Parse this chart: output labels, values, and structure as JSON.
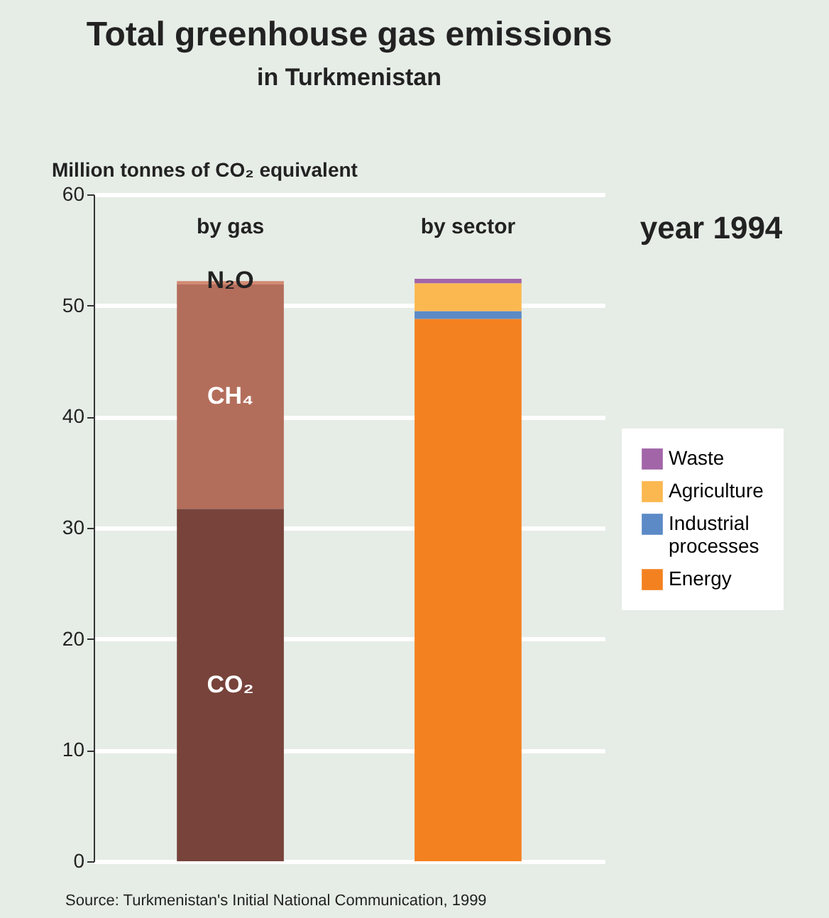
{
  "chart_data": {
    "type": "bar",
    "title": "Total greenhouse gas emissions",
    "subtitle": "in Turkmenistan",
    "ylabel": "Million tonnes of CO₂ equivalent",
    "categories": [
      "by gas",
      "by sector"
    ],
    "stacked": true,
    "series": [
      {
        "name": "CO₂",
        "color": "#77433b",
        "values": [
          31.7,
          null
        ]
      },
      {
        "name": "CH₄",
        "color": "#b36e5b",
        "values": [
          20.2,
          null
        ]
      },
      {
        "name": "N₂O",
        "color": "#d28a73",
        "values": [
          0.3,
          null
        ]
      },
      {
        "name": "Energy",
        "color": "#f48120",
        "values": [
          null,
          48.8
        ]
      },
      {
        "name": "Industrial processes",
        "color": "#5b8ac6",
        "values": [
          null,
          0.7
        ]
      },
      {
        "name": "Agriculture",
        "color": "#fbb850",
        "values": [
          null,
          2.5
        ]
      },
      {
        "name": "Waste",
        "color": "#a265a8",
        "values": [
          null,
          0.4
        ]
      }
    ],
    "ylim": [
      0,
      60
    ],
    "yticks": [
      0,
      10,
      20,
      30,
      40,
      50,
      60
    ],
    "grid": "y",
    "legend": "right",
    "annotations": [
      "year 1994",
      "Source: Turkmenistan's Initial National Communication, 1999"
    ]
  }
}
